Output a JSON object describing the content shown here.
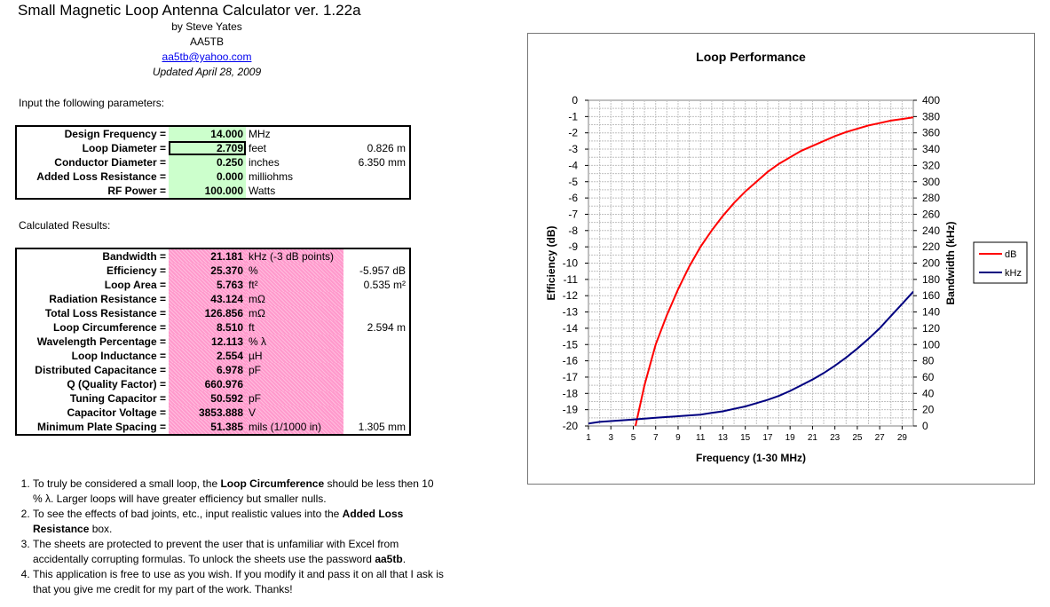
{
  "header": {
    "title": "Small Magnetic Loop Antenna Calculator ver. 1.22a",
    "author": "by Steve Yates",
    "callsign": "AA5TB",
    "email": "aa5tb@yahoo.com",
    "updated": "Updated April 28, 2009"
  },
  "input_section_label": "Input the following parameters:",
  "inputs": [
    {
      "label": "Design Frequency =",
      "value": "14.000",
      "unit": "MHz",
      "metric": ""
    },
    {
      "label": "Loop Diameter =",
      "value": "2.709",
      "unit": "feet",
      "metric": "0.826  m"
    },
    {
      "label": "Conductor Diameter =",
      "value": "0.250",
      "unit": "inches",
      "metric": "6.350  mm"
    },
    {
      "label": "Added Loss Resistance =",
      "value": "0.000",
      "unit": "milliohms",
      "metric": ""
    },
    {
      "label": "RF Power =",
      "value": "100.000",
      "unit": "Watts",
      "metric": ""
    }
  ],
  "results_section_label": "Calculated Results:",
  "results": [
    {
      "label": "Bandwidth =",
      "value": "21.181",
      "unit": "kHz (-3 dB points)",
      "metric": ""
    },
    {
      "label": "Efficiency =",
      "value": "25.370",
      "unit": "%",
      "metric": "-5.957  dB"
    },
    {
      "label": "Loop Area =",
      "value": "5.763",
      "unit": "ft²",
      "metric": "0.535  m²"
    },
    {
      "label": "Radiation Resistance =",
      "value": "43.124",
      "unit": "mΩ",
      "metric": ""
    },
    {
      "label": "Total Loss Resistance =",
      "value": "126.856",
      "unit": "mΩ",
      "metric": ""
    },
    {
      "label": "Loop Circumference =",
      "value": "8.510",
      "unit": "ft",
      "metric": "2.594  m"
    },
    {
      "label": "Wavelength Percentage =",
      "value": "12.113",
      "unit": "% λ",
      "metric": ""
    },
    {
      "label": "Loop Inductance =",
      "value": "2.554",
      "unit": "µH",
      "metric": ""
    },
    {
      "label": "Distributed Capacitance =",
      "value": "6.978",
      "unit": "pF",
      "metric": ""
    },
    {
      "label": "Q (Quality Factor) =",
      "value": "660.976",
      "unit": "",
      "metric": ""
    },
    {
      "label": "Tuning Capacitor =",
      "value": "50.592",
      "unit": "pF",
      "metric": ""
    },
    {
      "label": "Capacitor Voltage =",
      "value": "3853.888",
      "unit": "V",
      "metric": ""
    },
    {
      "label": "Minimum Plate Spacing =",
      "value": "51.385",
      "unit": "mils (1/1000 in)",
      "metric": "1.305  mm"
    }
  ],
  "notes": [
    {
      "a": "To truly be considered a small loop, the ",
      "b": "Loop Circumference",
      "c": " should be less then 10 % λ.  Larger loops will have greater efficiency but smaller nulls."
    },
    {
      "a": "To see the effects of bad joints, etc., input realistic values into the ",
      "b": "Added Loss Resistance",
      "c": " box."
    },
    {
      "a": "The sheets are protected to prevent the user that is unfamiliar with Excel from accidentally corrupting formulas.  To unlock the sheets use the password ",
      "b": "aa5tb",
      "c": "."
    },
    {
      "a": "This application is free to use as you wish.  If you modify it and pass it on all that I ask is that you give me credit for my part of the work. Thanks!",
      "b": "",
      "c": ""
    }
  ],
  "colors": {
    "input_fill": "#ccffcc",
    "result_fill": "#ff99cc",
    "db_series": "#ff0000",
    "khz_series": "#000080"
  },
  "chart_data": {
    "type": "line",
    "title": "Loop Performance",
    "xlabel": "Frequency (1-30 MHz)",
    "ylabel": "Efficiency (dB)",
    "y2label": "Bandwidth (kHz)",
    "xlim": [
      1,
      30
    ],
    "ylim": [
      -20,
      0
    ],
    "y2lim": [
      0,
      400
    ],
    "x_ticks": [
      "1",
      "3",
      "5",
      "7",
      "9",
      "11",
      "13",
      "15",
      "17",
      "19",
      "21",
      "23",
      "25",
      "27",
      "29"
    ],
    "y_ticks": [
      "0",
      "-1",
      "-2",
      "-3",
      "-4",
      "-5",
      "-6",
      "-7",
      "-8",
      "-9",
      "-10",
      "-11",
      "-12",
      "-13",
      "-14",
      "-15",
      "-16",
      "-17",
      "-18",
      "-19",
      "-20"
    ],
    "y2_ticks": [
      "400",
      "380",
      "360",
      "340",
      "320",
      "300",
      "280",
      "260",
      "240",
      "220",
      "200",
      "180",
      "160",
      "140",
      "120",
      "100",
      "80",
      "60",
      "40",
      "20",
      "0"
    ],
    "grid": true,
    "legend_position": "right",
    "series": [
      {
        "name": "dB",
        "axis": "left",
        "x": [
          5.2,
          6,
          7,
          8,
          9,
          10,
          11,
          12,
          13,
          14,
          15,
          16,
          17,
          18,
          19,
          20,
          21,
          22,
          23,
          24,
          25,
          26,
          27,
          28,
          29,
          30
        ],
        "values": [
          -20,
          -17.5,
          -15,
          -13.2,
          -11.6,
          -10.2,
          -9.0,
          -8.0,
          -7.1,
          -6.3,
          -5.6,
          -5.0,
          -4.4,
          -3.9,
          -3.5,
          -3.1,
          -2.8,
          -2.5,
          -2.2,
          -1.95,
          -1.75,
          -1.55,
          -1.4,
          -1.25,
          -1.15,
          -1.05
        ]
      },
      {
        "name": "kHz",
        "axis": "right",
        "x": [
          1,
          2,
          3,
          4,
          5,
          6,
          7,
          8,
          9,
          10,
          11,
          12,
          13,
          14,
          15,
          16,
          17,
          18,
          19,
          20,
          21,
          22,
          23,
          24,
          25,
          26,
          27,
          28,
          29,
          30
        ],
        "values": [
          3,
          5,
          6,
          7,
          8,
          9,
          10,
          11,
          12,
          13,
          14,
          16,
          18,
          21,
          24,
          28,
          32,
          37,
          43,
          50,
          57,
          65,
          74,
          84,
          95,
          107,
          120,
          135,
          150,
          165
        ]
      }
    ]
  }
}
